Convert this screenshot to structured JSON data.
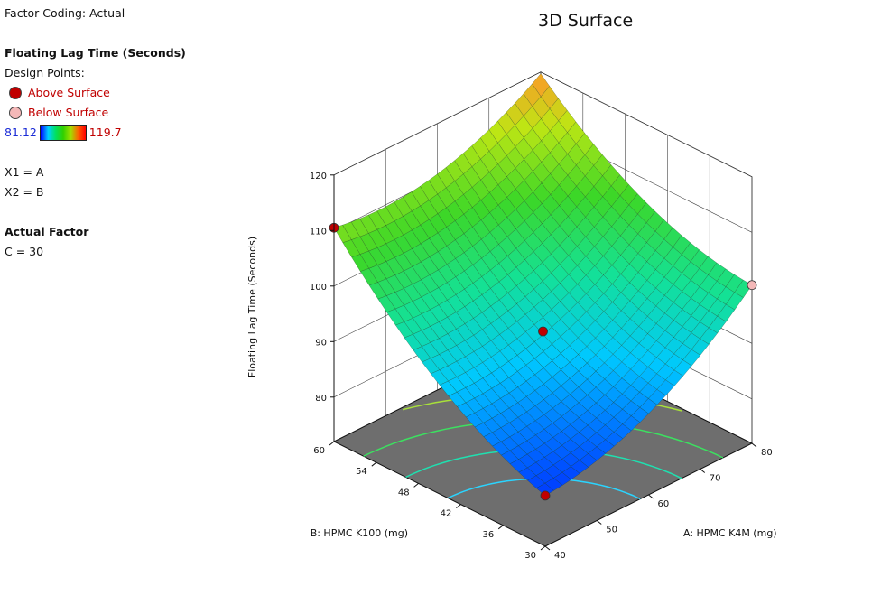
{
  "header": {
    "factor_coding": "Factor Coding: Actual",
    "response_title": "Floating Lag Time (Seconds)",
    "design_points_label": "Design Points:",
    "above_surface": "Above Surface",
    "below_surface": "Below Surface",
    "scale_min": "81.12",
    "scale_max": "119.7",
    "x1_mapping": "X1 = A",
    "x2_mapping": "X2 = B",
    "actual_factor_title": "Actual Factor",
    "actual_factor_value": "C = 30"
  },
  "colors": {
    "above_surface_point": "#c00000",
    "below_surface_point": "#f4b8b8",
    "floor": "#6e6e6e"
  },
  "chart_data": {
    "type": "surface3d",
    "title": "3D Surface",
    "zlabel": "Floating Lag Time (Seconds)",
    "xlabel": "A: HPMC K4M (mg)",
    "ylabel": "B: HPMC K100 (mg)",
    "x_range": [
      40,
      80
    ],
    "y_range": [
      30,
      60
    ],
    "z_range": [
      72,
      120
    ],
    "x_ticks": [
      "40",
      "50",
      "60",
      "70",
      "80"
    ],
    "y_ticks": [
      "30",
      "36",
      "42",
      "48",
      "54",
      "60"
    ],
    "z_ticks": [
      "80",
      "90",
      "100",
      "110",
      "120"
    ],
    "surface_corners": {
      "A40_B30": 81.12,
      "A80_B30": 100.5,
      "A40_B60": 110.5,
      "A80_B60": 119.7
    },
    "design_points": [
      {
        "A": 40,
        "B": 30,
        "z": 81.12,
        "position": "above"
      },
      {
        "A": 60,
        "B": 45,
        "z": 92.0,
        "position": "above"
      },
      {
        "A": 40,
        "B": 60,
        "z": 110.5,
        "position": "above"
      },
      {
        "A": 80,
        "B": 30,
        "z": 100.5,
        "position": "below"
      }
    ]
  }
}
